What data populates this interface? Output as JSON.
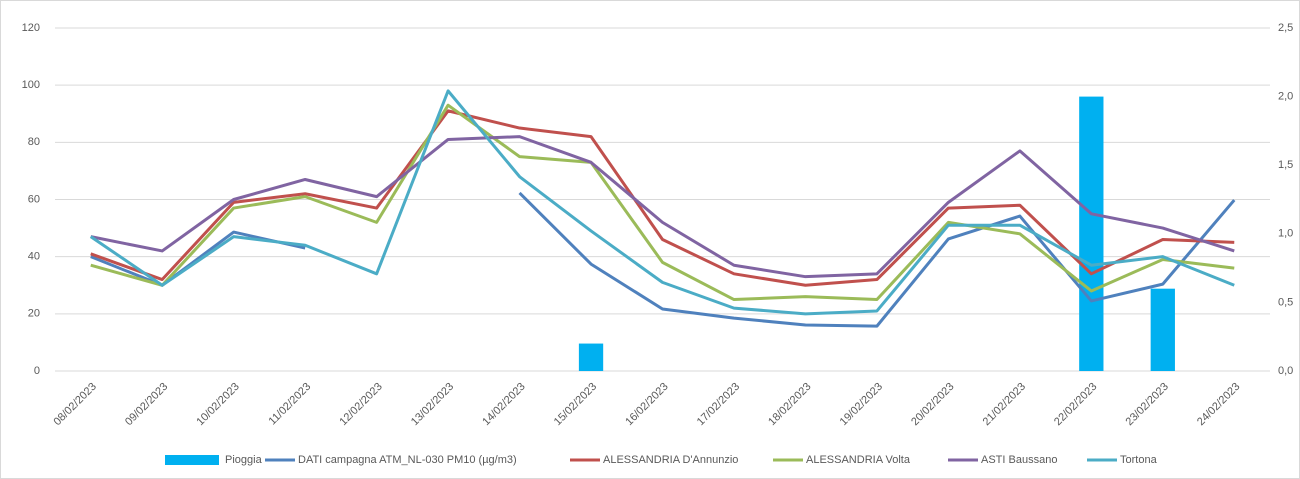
{
  "chart_data": {
    "type": "combo",
    "categories": [
      "08/02/2023",
      "09/02/2023",
      "10/02/2023",
      "11/02/2023",
      "12/02/2023",
      "13/02/2023",
      "14/02/2023",
      "15/02/2023",
      "16/02/2023",
      "17/02/2023",
      "18/02/2023",
      "19/02/2023",
      "20/02/2023",
      "21/02/2023",
      "22/02/2023",
      "23/02/2023",
      "24/02/2023"
    ],
    "ylim": [
      0,
      120
    ],
    "yticks": [
      0,
      20,
      40,
      60,
      80,
      100,
      120
    ],
    "y2lim": [
      0,
      2.5
    ],
    "y2ticks": [
      {
        "value": 0,
        "label": "0,0"
      },
      {
        "value": 0.5,
        "label": "0,5"
      },
      {
        "value": 1,
        "label": "1,0"
      },
      {
        "value": 1.5,
        "label": "1,5"
      },
      {
        "value": 2,
        "label": "2,0"
      },
      {
        "value": 2.5,
        "label": "2,5"
      }
    ],
    "grid": true,
    "legend": "bottom",
    "series": [
      {
        "name": "Pioggia",
        "type": "bar",
        "axis": "y2",
        "color": "#00b0f0",
        "values": [
          null,
          null,
          null,
          null,
          null,
          null,
          null,
          0.2,
          null,
          null,
          null,
          null,
          null,
          null,
          2.0,
          0.6,
          null
        ]
      },
      {
        "name": "DATI campagna ATM_NL-030  PM10 (µg/m3)",
        "type": "line",
        "color": "#4f81bd",
        "values": [
          40,
          30,
          48.6,
          43,
          null,
          null,
          62.3,
          37.4,
          21.7,
          18.5,
          16.1,
          15.7,
          46.2,
          54.2,
          24.5,
          30.4,
          59.8
        ]
      },
      {
        "name": "ALESSANDRIA D'Annunzio",
        "type": "line",
        "color": "#c0504d",
        "values": [
          41,
          32,
          59,
          62,
          57,
          91,
          85,
          82,
          46,
          34,
          30,
          32,
          57,
          58,
          34,
          46,
          45
        ]
      },
      {
        "name": "ALESSANDRIA Volta",
        "type": "line",
        "color": "#9bbb59",
        "values": [
          37,
          30,
          57,
          61,
          52,
          93,
          75,
          73,
          38,
          25,
          26,
          25,
          52,
          48,
          28,
          39,
          36
        ]
      },
      {
        "name": "ASTI  Baussano",
        "type": "line",
        "color": "#8064a2",
        "values": [
          47,
          42,
          60,
          67,
          61,
          81,
          82,
          73,
          52,
          37,
          33,
          34,
          59,
          77,
          55,
          50,
          42
        ]
      },
      {
        "name": "Tortona",
        "type": "line",
        "color": "#4bacc6",
        "values": [
          47,
          30,
          47,
          44,
          34,
          98,
          68,
          49,
          31,
          22,
          20,
          21,
          51,
          51,
          37,
          40,
          30
        ]
      }
    ]
  }
}
